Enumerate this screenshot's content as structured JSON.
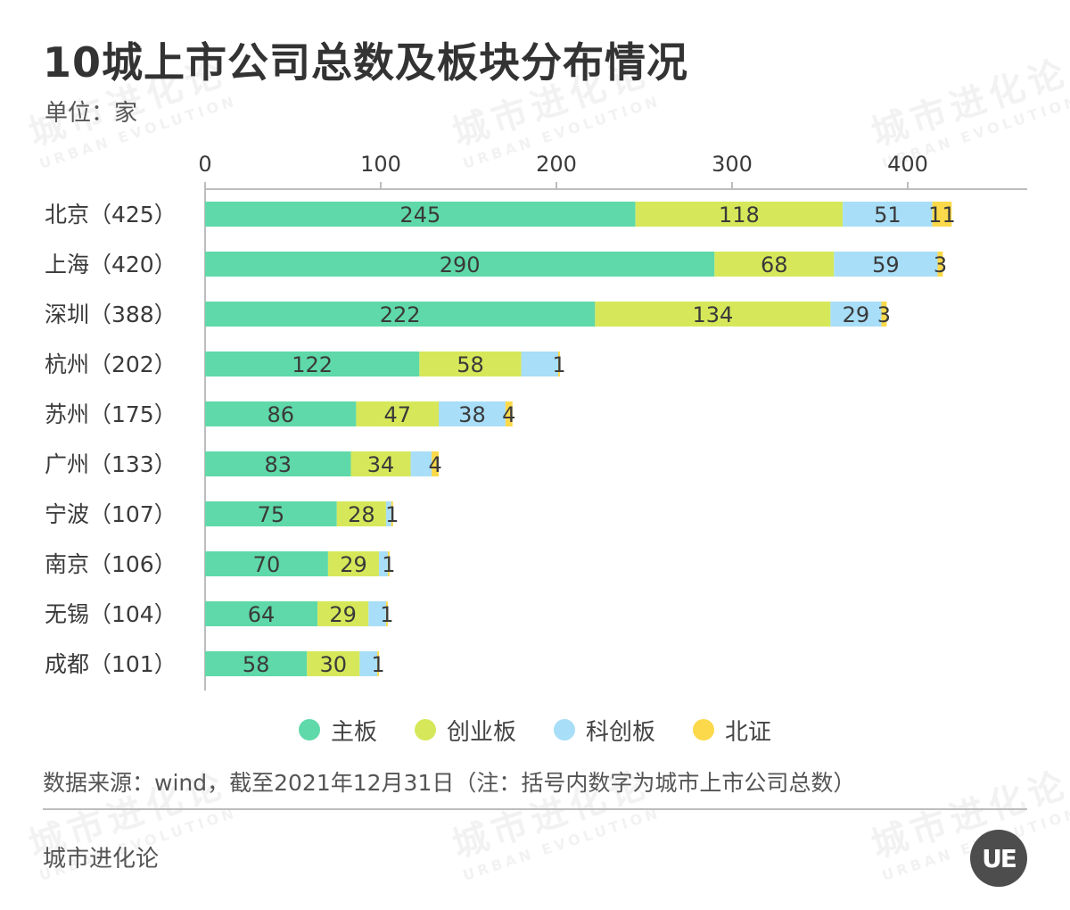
{
  "title": "10城上市公司总数及板块分布情况",
  "unit": "单位：家",
  "source": "数据来源：wind，截至2021年12月31日（注：括号内数字为城市上市公司总数）",
  "brand": "城市进化论",
  "watermark": {
    "text": "城市进化论",
    "sub": "URBAN EVOLUTION"
  },
  "logo": {
    "mark": "UE",
    "text": "URBAN EVOLUTION"
  },
  "colors": {
    "主板": "#5fd9a9",
    "创业板": "#d6e85a",
    "科创板": "#a8def7",
    "北证": "#fbd94a",
    "axis": "#bdbdbd",
    "text": "#3a3a3a"
  },
  "chart_data": {
    "type": "bar",
    "orientation": "horizontal",
    "stacked": true,
    "categories": [
      "北京（425）",
      "上海（420）",
      "深圳（388）",
      "杭州（202）",
      "苏州（175）",
      "广州（133）",
      "宁波（107）",
      "南京（106）",
      "无锡（104）",
      "成都（101）"
    ],
    "series": [
      {
        "name": "主板",
        "values": [
          245,
          290,
          222,
          122,
          86,
          83,
          75,
          70,
          64,
          58
        ]
      },
      {
        "name": "创业板",
        "values": [
          118,
          68,
          134,
          58,
          47,
          34,
          28,
          29,
          29,
          30
        ]
      },
      {
        "name": "科创板",
        "values": [
          51,
          59,
          29,
          21,
          38,
          12,
          3,
          5,
          10,
          10
        ]
      },
      {
        "name": "北证",
        "values": [
          11,
          3,
          3,
          1,
          4,
          4,
          1,
          1,
          1,
          1
        ]
      }
    ],
    "labels": [
      [
        "245",
        "118",
        "51",
        "11"
      ],
      [
        "290",
        "68",
        "59",
        "3"
      ],
      [
        "222",
        "134",
        "29",
        "3"
      ],
      [
        "122",
        "58",
        "",
        "1"
      ],
      [
        "86",
        "47",
        "38",
        "4"
      ],
      [
        "83",
        "34",
        "",
        "4"
      ],
      [
        "75",
        "28",
        "",
        "1"
      ],
      [
        "70",
        "29",
        "",
        "1"
      ],
      [
        "64",
        "29",
        "",
        "1"
      ],
      [
        "58",
        "30",
        "",
        "1"
      ]
    ],
    "xlim": [
      0,
      468
    ],
    "xticks": [
      0,
      100,
      200,
      300,
      400
    ],
    "axis_position": "top",
    "grid": false,
    "legend_position": "bottom"
  }
}
